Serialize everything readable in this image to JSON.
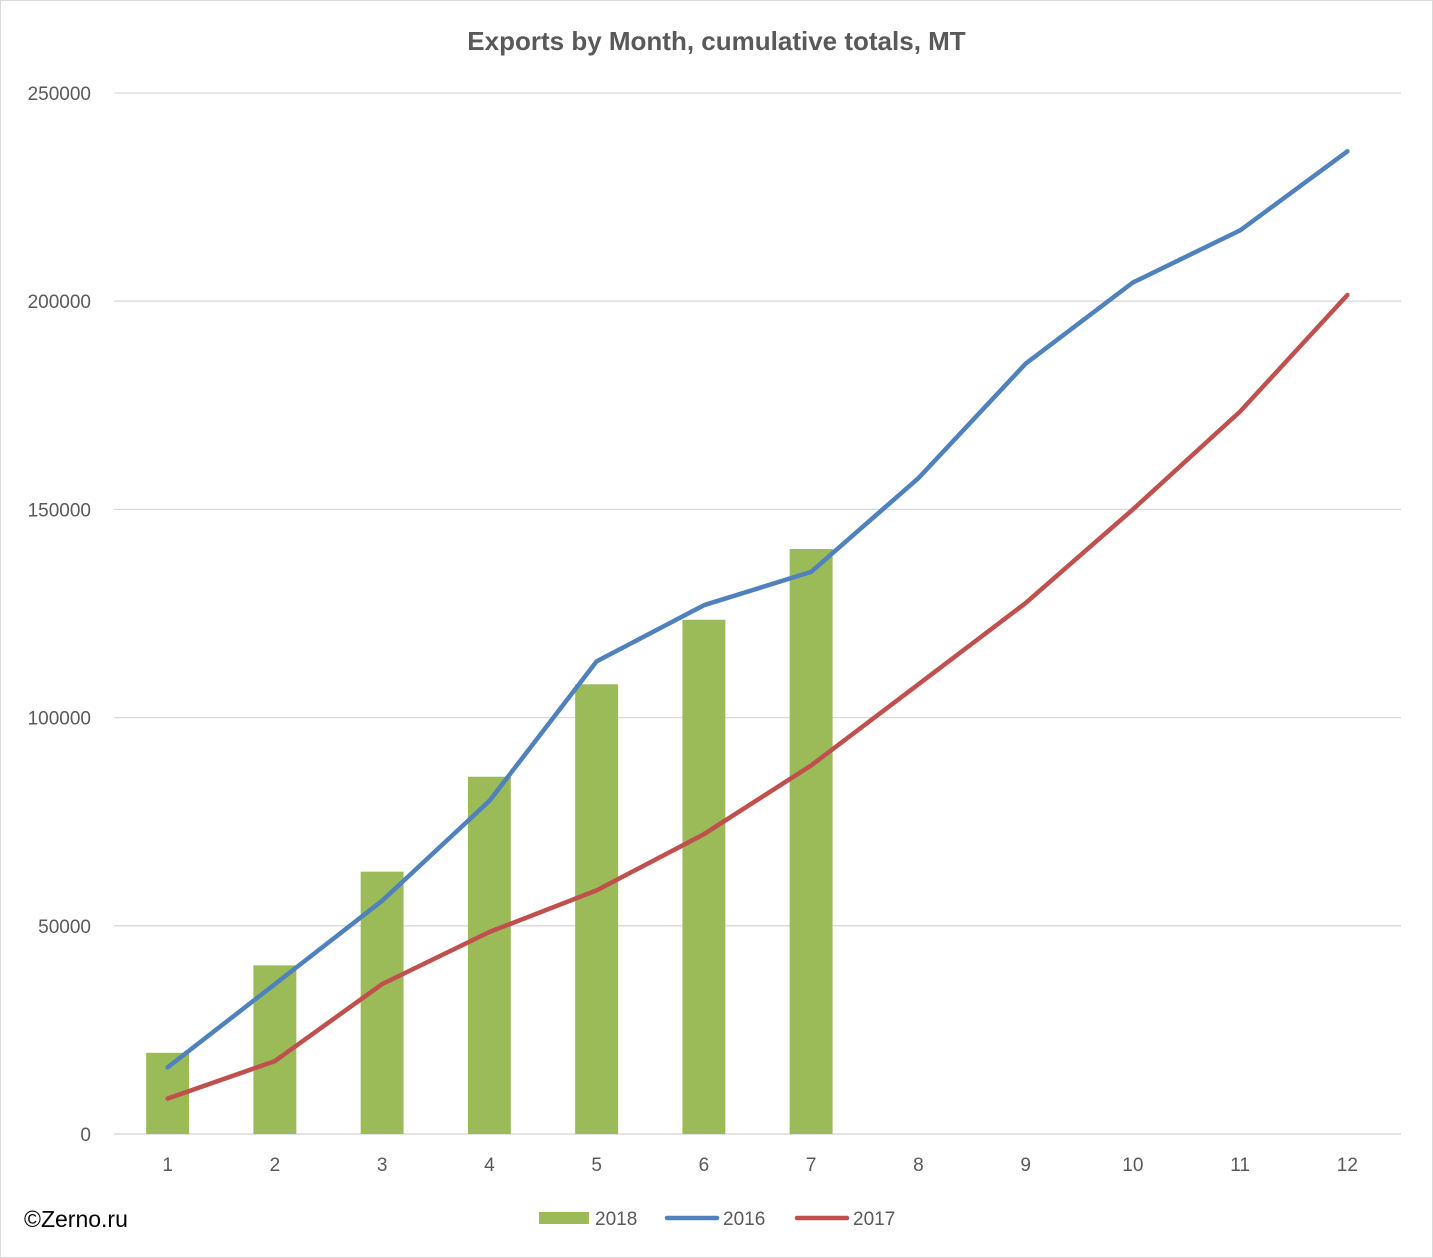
{
  "chart_data": {
    "type": "bar",
    "title": "Exports by Month, cumulative totals, MT",
    "xlabel": "",
    "ylabel": "",
    "categories": [
      "1",
      "2",
      "3",
      "4",
      "5",
      "6",
      "7",
      "8",
      "9",
      "10",
      "11",
      "12"
    ],
    "ylim": [
      0,
      250000
    ],
    "yticks": [
      "0",
      "50000",
      "100000",
      "150000",
      "200000",
      "250000"
    ],
    "grid": true,
    "legend_position": "bottom",
    "series": [
      {
        "name": "2018",
        "type": "bar",
        "color": "#9bbb59",
        "values": [
          19500,
          40500,
          63000,
          85800,
          108000,
          123500,
          140500,
          null,
          null,
          null,
          null,
          null
        ]
      },
      {
        "name": "2016",
        "type": "line",
        "color": "#4f81bd",
        "values": [
          16000,
          36000,
          56000,
          80000,
          113500,
          127000,
          135000,
          157500,
          185000,
          204500,
          217000,
          236000
        ]
      },
      {
        "name": "2017",
        "type": "line",
        "color": "#c0504d",
        "values": [
          8500,
          17500,
          36000,
          48500,
          58500,
          72000,
          88500,
          108000,
          127500,
          150000,
          173500,
          201500
        ]
      }
    ]
  },
  "credit": "©Zerno.ru"
}
